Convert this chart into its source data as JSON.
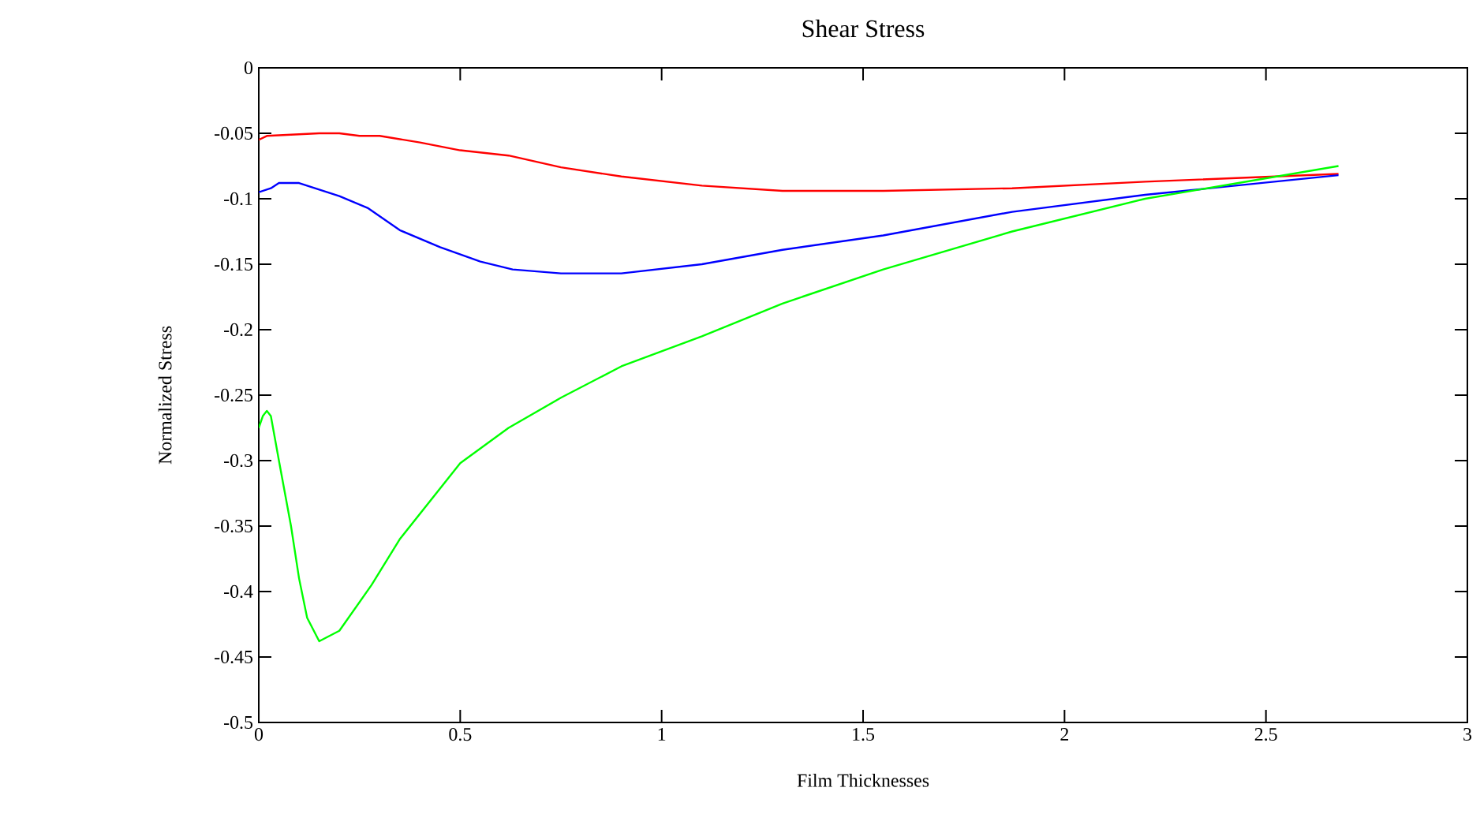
{
  "chart_data": {
    "type": "line",
    "title": "Shear Stress",
    "xlabel": "Film Thicknesses",
    "ylabel": "Normalized Stress",
    "xlim": [
      0,
      3
    ],
    "ylim": [
      -0.5,
      0
    ],
    "xticks": [
      0,
      0.5,
      1,
      1.5,
      2,
      2.5,
      3
    ],
    "yticks": [
      0,
      -0.05,
      -0.1,
      -0.15,
      -0.2,
      -0.25,
      -0.3,
      -0.35,
      -0.4,
      -0.45,
      -0.5
    ],
    "grid": false,
    "marker": "none",
    "line_style": "solid",
    "series": [
      {
        "color": "#ff0000",
        "x": [
          0,
          0.02,
          0.15,
          0.2,
          0.25,
          0.3,
          0.4,
          0.5,
          0.62,
          0.75,
          0.9,
          1.1,
          1.3,
          1.55,
          1.87,
          2.2,
          2.68
        ],
        "values": [
          -0.055,
          -0.052,
          -0.05,
          -0.05,
          -0.052,
          -0.052,
          -0.057,
          -0.063,
          -0.067,
          -0.076,
          -0.083,
          -0.09,
          -0.094,
          -0.094,
          -0.092,
          -0.087,
          -0.081
        ]
      },
      {
        "color": "#0000ff",
        "x": [
          0,
          0.03,
          0.05,
          0.1,
          0.2,
          0.27,
          0.35,
          0.45,
          0.55,
          0.63,
          0.75,
          0.9,
          1.1,
          1.3,
          1.55,
          1.87,
          2.2,
          2.68
        ],
        "values": [
          -0.095,
          -0.092,
          -0.088,
          -0.088,
          -0.098,
          -0.107,
          -0.124,
          -0.137,
          -0.148,
          -0.154,
          -0.157,
          -0.157,
          -0.15,
          -0.139,
          -0.128,
          -0.11,
          -0.097,
          -0.082
        ]
      },
      {
        "color": "#00ff00",
        "x": [
          0,
          0.01,
          0.02,
          0.03,
          0.05,
          0.08,
          0.1,
          0.12,
          0.15,
          0.2,
          0.28,
          0.35,
          0.5,
          0.62,
          0.75,
          0.9,
          1.1,
          1.3,
          1.55,
          1.87,
          2.2,
          2.68
        ],
        "values": [
          -0.275,
          -0.266,
          -0.262,
          -0.266,
          -0.3,
          -0.35,
          -0.39,
          -0.42,
          -0.438,
          -0.43,
          -0.395,
          -0.36,
          -0.302,
          -0.275,
          -0.252,
          -0.228,
          -0.205,
          -0.18,
          -0.154,
          -0.125,
          -0.1,
          -0.075
        ]
      }
    ]
  }
}
